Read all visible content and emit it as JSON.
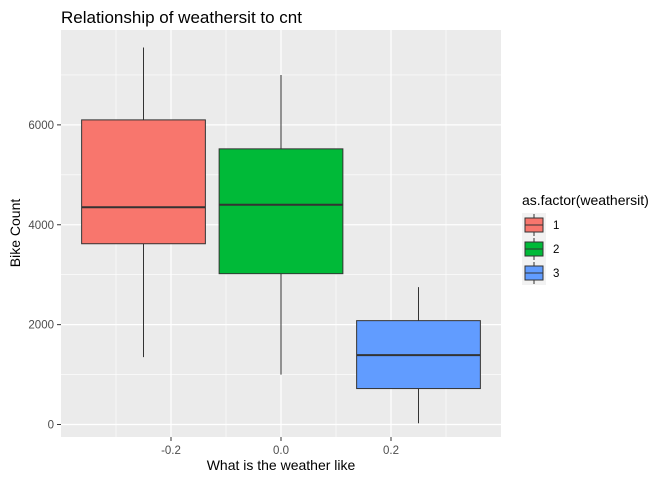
{
  "chart_data": {
    "type": "boxplot",
    "title": "Relationship of weathersit to cnt",
    "xlabel": "What is the weather like",
    "ylabel": "Bike Count",
    "x_ticks": [
      "-0.2",
      "0.0",
      "0.2"
    ],
    "x_tick_values": [
      -0.2,
      0.0,
      0.2
    ],
    "y_ticks": [
      "0",
      "2000",
      "4000",
      "6000"
    ],
    "y_tick_values": [
      0,
      2000,
      4000,
      6000
    ],
    "xlim": [
      -0.4,
      0.4
    ],
    "ylim": [
      -250,
      7900
    ],
    "grid": true,
    "legend": {
      "title": "as.factor(weathersit)",
      "position": "right",
      "entries": [
        {
          "label": "1",
          "color": "#F8766D"
        },
        {
          "label": "2",
          "color": "#00BA38"
        },
        {
          "label": "3",
          "color": "#619CFF"
        }
      ]
    },
    "series": [
      {
        "name": "1",
        "color": "#F8766D",
        "x_center": -0.25,
        "box_width": 0.225,
        "min": 1350,
        "q1": 3620,
        "median": 4350,
        "q3": 6100,
        "max": 7550
      },
      {
        "name": "2",
        "color": "#00BA38",
        "x_center": 0.0,
        "box_width": 0.225,
        "min": 1000,
        "q1": 3020,
        "median": 4400,
        "q3": 5520,
        "max": 7000
      },
      {
        "name": "3",
        "color": "#619CFF",
        "x_center": 0.25,
        "box_width": 0.225,
        "min": 25,
        "q1": 720,
        "median": 1390,
        "q3": 2080,
        "max": 2750
      }
    ]
  }
}
